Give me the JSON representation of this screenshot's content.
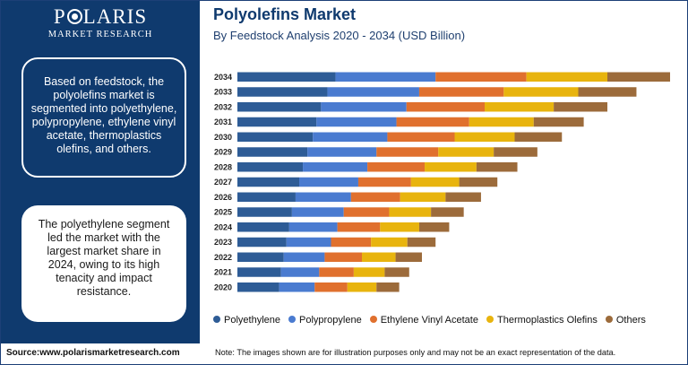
{
  "brand": {
    "name": "P LARIS",
    "name_before": "P",
    "name_after": "LARIS",
    "tagline": "MARKET RESEARCH"
  },
  "sidebar": {
    "box1_text": "Based on feedstock, the polyolefins market is segmented into polyethylene, polypropylene, ethylene vinyl acetate, thermoplastics olefins, and others.",
    "box2_text": "The polyethylene segment led the market with the largest market share in 2024, owing to its high tenacity and impact resistance."
  },
  "footer": {
    "source": "Source:www.polarismarketresearch.com",
    "note": "Note: The images shown are for illustration purposes only and may not be an exact representation of the data."
  },
  "colors": {
    "sidebar": "#0f3a6e",
    "title": "#0f3a6e"
  },
  "chart_data": {
    "type": "bar",
    "orientation": "horizontal",
    "stacked": true,
    "title": "Polyolefins Market",
    "subtitle": "By Feedstock Analysis 2020 - 2034 (USD Billion)",
    "xlabel": "",
    "ylabel": "",
    "grid": false,
    "legend_position": "bottom",
    "categories": [
      "2034",
      "2033",
      "2032",
      "2031",
      "2030",
      "2029",
      "2028",
      "2027",
      "2026",
      "2025",
      "2024",
      "2023",
      "2022",
      "2021",
      "2020"
    ],
    "series": [
      {
        "name": "Polyethylene",
        "color": "#2e5c96",
        "values": [
          108,
          99,
          92,
          87,
          83,
          77,
          72,
          68,
          64,
          60,
          57,
          54,
          51,
          48,
          46
        ]
      },
      {
        "name": "Polypropylene",
        "color": "#4a7bd0",
        "values": [
          110,
          101,
          94,
          88,
          82,
          76,
          71,
          65,
          61,
          57,
          53,
          49,
          45,
          42,
          39
        ]
      },
      {
        "name": "Ethylene Vinyl Acetate",
        "color": "#e0702e",
        "values": [
          100,
          93,
          86,
          80,
          74,
          68,
          63,
          58,
          54,
          50,
          47,
          44,
          41,
          38,
          36
        ]
      },
      {
        "name": "Thermoplastics Olefins",
        "color": "#e8b40e",
        "values": [
          89,
          82,
          76,
          71,
          66,
          61,
          57,
          53,
          50,
          46,
          43,
          40,
          37,
          34,
          32
        ]
      },
      {
        "name": "Others",
        "color": "#9c6b3b",
        "values": [
          69,
          64,
          59,
          55,
          52,
          48,
          45,
          42,
          39,
          36,
          33,
          31,
          29,
          27,
          25
        ]
      }
    ]
  }
}
